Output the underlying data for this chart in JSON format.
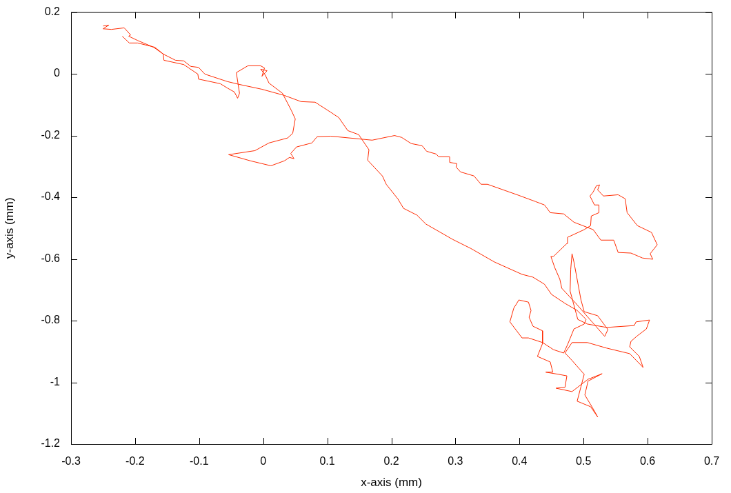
{
  "chart_data": {
    "type": "line",
    "xlabel": "x-axis (mm)",
    "ylabel": "y-axis (mm)",
    "color": "#ff2a00",
    "marker": "none",
    "xlim": [
      -0.3,
      0.7
    ],
    "xticks": [
      -0.3,
      -0.2,
      -0.1,
      0,
      0.1,
      0.2,
      0.3,
      0.4,
      0.5,
      0.6,
      0.7
    ],
    "ylim": [
      -1.2,
      0.2
    ],
    "yticks": [
      -1.2,
      -1,
      -0.8,
      -0.6,
      -0.4,
      -0.2,
      0,
      0.2
    ],
    "x": [
      -0.25,
      -0.241,
      -0.25,
      -0.237,
      -0.217,
      -0.207,
      -0.21,
      -0.196,
      -0.171,
      -0.156,
      -0.137,
      -0.124,
      -0.113,
      -0.101,
      -0.091,
      -0.075,
      -0.056,
      -0.038,
      -0.002,
      0.033,
      0.059,
      0.081,
      0.105,
      0.118,
      0.132,
      0.149,
      0.165,
      0.163,
      0.186,
      0.192,
      0.21,
      0.219,
      0.24,
      0.254,
      0.296,
      0.324,
      0.361,
      0.404,
      0.421,
      0.439,
      0.45,
      0.471,
      0.49,
      0.504,
      0.501,
      0.485,
      0.475,
      0.469,
      0.453,
      0.436,
      0.414,
      0.404,
      0.385,
      0.391,
      0.399,
      0.414,
      0.418,
      0.415,
      0.421,
      0.436,
      0.436,
      0.428,
      0.448,
      0.452,
      0.441,
      0.461,
      0.474,
      0.471,
      0.457,
      0.482,
      0.507,
      0.529,
      0.507,
      0.502,
      0.515,
      0.522,
      0.511,
      0.49,
      0.501,
      0.482,
      0.471,
      0.482,
      0.506,
      0.536,
      0.572,
      0.588,
      0.593,
      0.587,
      0.572,
      0.574,
      0.584,
      0.598,
      0.603,
      0.582,
      0.579,
      0.536,
      0.506,
      0.491,
      0.479,
      0.48,
      0.482,
      0.485,
      0.496,
      0.501,
      0.522,
      0.538,
      0.533,
      0.488,
      0.466,
      0.463,
      0.455,
      0.449,
      0.453,
      0.474,
      0.475,
      0.501,
      0.511,
      0.512,
      0.524,
      0.524,
      0.517,
      0.51,
      0.515,
      0.52,
      0.525,
      0.522,
      0.531,
      0.554,
      0.565,
      0.568,
      0.584,
      0.606,
      0.615,
      0.604,
      0.608,
      0.592,
      0.574,
      0.554,
      0.549,
      0.547,
      0.527,
      0.515,
      0.485,
      0.469,
      0.448,
      0.439,
      0.425,
      0.399,
      0.35,
      0.34,
      0.329,
      0.308,
      0.301,
      0.302,
      0.291,
      0.291,
      0.274,
      0.27,
      0.255,
      0.248,
      0.231,
      0.216,
      0.205,
      0.17,
      0.105,
      0.084,
      0.076,
      0.052,
      0.043,
      0.048,
      0.041,
      0.033,
      0.012,
      -0.002,
      -0.02,
      -0.054,
      -0.013,
      0.009,
      0.038,
      0.046,
      0.05,
      0.044,
      0.03,
      0.009,
      0.003,
      -0.004,
      0.006,
      -0.002,
      0.002,
      -0.004,
      -0.024,
      -0.042,
      -0.037,
      -0.04,
      -0.045,
      -0.056,
      -0.067,
      -0.101,
      -0.102,
      -0.124,
      -0.155,
      -0.156,
      -0.169,
      -0.196,
      -0.209,
      -0.22
    ],
    "values": [
      0.155,
      0.158,
      0.146,
      0.144,
      0.149,
      0.126,
      0.122,
      0.108,
      0.086,
      0.064,
      0.044,
      0.042,
      0.024,
      0.021,
      -0.001,
      -0.012,
      -0.025,
      -0.034,
      -0.05,
      -0.07,
      -0.09,
      -0.092,
      -0.124,
      -0.142,
      -0.184,
      -0.197,
      -0.246,
      -0.28,
      -0.331,
      -0.358,
      -0.405,
      -0.436,
      -0.458,
      -0.487,
      -0.537,
      -0.566,
      -0.61,
      -0.65,
      -0.659,
      -0.682,
      -0.715,
      -0.744,
      -0.767,
      -0.796,
      -0.811,
      -0.827,
      -0.878,
      -0.905,
      -0.894,
      -0.871,
      -0.856,
      -0.856,
      -0.804,
      -0.76,
      -0.733,
      -0.74,
      -0.767,
      -0.789,
      -0.818,
      -0.833,
      -0.874,
      -0.916,
      -0.934,
      -0.967,
      -0.967,
      -0.974,
      -0.979,
      -1.016,
      -1.019,
      -1.03,
      -0.99,
      -0.972,
      -0.996,
      -1.041,
      -1.086,
      -1.112,
      -1.079,
      -1.061,
      -0.974,
      -0.929,
      -0.905,
      -0.871,
      -0.871,
      -0.889,
      -0.907,
      -0.941,
      -0.952,
      -0.916,
      -0.885,
      -0.867,
      -0.849,
      -0.827,
      -0.798,
      -0.804,
      -0.816,
      -0.822,
      -0.811,
      -0.796,
      -0.704,
      -0.633,
      -0.583,
      -0.61,
      -0.733,
      -0.771,
      -0.784,
      -0.829,
      -0.851,
      -0.744,
      -0.695,
      -0.666,
      -0.628,
      -0.592,
      -0.592,
      -0.55,
      -0.53,
      -0.505,
      -0.492,
      -0.461,
      -0.45,
      -0.425,
      -0.425,
      -0.396,
      -0.383,
      -0.363,
      -0.36,
      -0.376,
      -0.396,
      -0.392,
      -0.405,
      -0.45,
      -0.492,
      -0.514,
      -0.554,
      -0.583,
      -0.601,
      -0.597,
      -0.581,
      -0.579,
      -0.55,
      -0.539,
      -0.539,
      -0.505,
      -0.481,
      -0.454,
      -0.45,
      -0.425,
      -0.414,
      -0.394,
      -0.358,
      -0.358,
      -0.331,
      -0.318,
      -0.302,
      -0.291,
      -0.287,
      -0.269,
      -0.269,
      -0.26,
      -0.251,
      -0.233,
      -0.226,
      -0.206,
      -0.2,
      -0.215,
      -0.202,
      -0.204,
      -0.224,
      -0.237,
      -0.258,
      -0.275,
      -0.271,
      -0.282,
      -0.298,
      -0.291,
      -0.282,
      -0.262,
      -0.249,
      -0.224,
      -0.208,
      -0.193,
      -0.146,
      -0.119,
      -0.063,
      -0.03,
      -0.003,
      0.015,
      0.01,
      -0.008,
      0.019,
      0.026,
      0.026,
      0.004,
      -0.063,
      -0.079,
      -0.059,
      -0.046,
      -0.032,
      -0.017,
      -0.001,
      0.03,
      0.044,
      0.064,
      0.086,
      0.1,
      0.1,
      0.122
    ]
  }
}
